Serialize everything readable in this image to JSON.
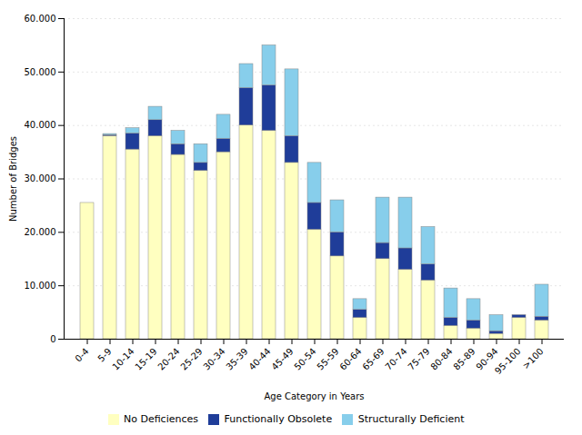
{
  "chart_data": {
    "type": "bar",
    "stacked": true,
    "categories": [
      "0-4",
      "5-9",
      "10-14",
      "15-19",
      "20-24",
      "25-29",
      "30-34",
      "35-39",
      "40-44",
      "45-49",
      "50-54",
      "55-59",
      "60-64",
      "65-69",
      "70-74",
      "75-79",
      "80-84",
      "85-89",
      "90-94",
      "95-100",
      ">100"
    ],
    "series": [
      {
        "name": "No Deficiences",
        "color": "#FFFFC0",
        "values": [
          25500,
          38000,
          35500,
          38000,
          34500,
          31500,
          35000,
          40000,
          39000,
          33000,
          20500,
          15500,
          4000,
          15000,
          13000,
          11000,
          2500,
          2000,
          1000,
          4000,
          3500
        ]
      },
      {
        "name": "Functionally Obsolete",
        "color": "#1F3D99",
        "values": [
          0,
          200,
          3000,
          3000,
          2000,
          1500,
          2500,
          7000,
          8500,
          5000,
          5000,
          4500,
          1500,
          3000,
          4000,
          3000,
          1500,
          1500,
          500,
          500,
          700
        ]
      },
      {
        "name": "Structurally Deficient",
        "color": "#87CEEB",
        "values": [
          0,
          200,
          1000,
          2500,
          2500,
          3500,
          4500,
          4500,
          7500,
          12500,
          7500,
          6000,
          2000,
          8500,
          9500,
          7000,
          5500,
          4000,
          3000,
          0,
          6000
        ]
      }
    ],
    "xlabel": "Age Category in Years",
    "ylabel": "Number of Bridges",
    "ylim": [
      0,
      60000
    ],
    "yticks": [
      0,
      {
        "value": 10000,
        "label": "10.000"
      },
      {
        "value": 20000,
        "label": "20.000"
      },
      {
        "value": 30000,
        "label": "30.000"
      },
      {
        "value": 40000,
        "label": "40.000"
      },
      {
        "value": 50000,
        "label": "50.000"
      },
      {
        "value": 60000,
        "label": "60.000"
      }
    ],
    "grid": true,
    "legend": "bottom"
  }
}
